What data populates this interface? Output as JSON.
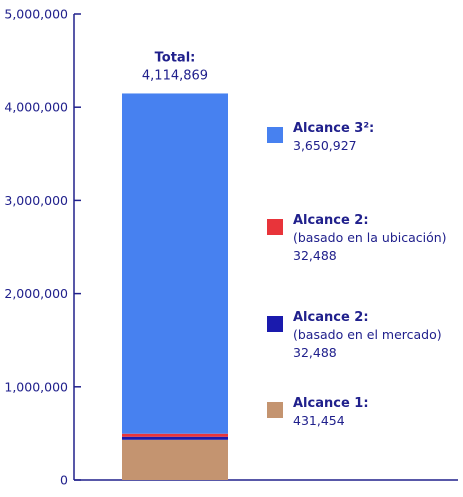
{
  "chart_data": {
    "type": "bar",
    "stacked": true,
    "categories": [
      ""
    ],
    "ylim": [
      0,
      5000000
    ],
    "yticks": [
      0,
      1000000,
      2000000,
      3000000,
      4000000,
      5000000
    ],
    "ytick_labels": [
      "0",
      "1,000,000",
      "2,000,000",
      "3,000,000",
      "4,000,000",
      "5,000,000"
    ],
    "total": {
      "label": "Total:",
      "value_label": "4,114,869",
      "value": 4114869
    },
    "series": [
      {
        "name": "Alcance 1:",
        "subtitle": "",
        "value": 431454,
        "value_label": "431,454",
        "color": "#c49470"
      },
      {
        "name": "Alcance 2:",
        "subtitle": "(basado en el mercado)",
        "value": 32488,
        "value_label": "32,488",
        "color": "#1a1aad"
      },
      {
        "name": "Alcance 2:",
        "subtitle": "(basado en la ubicación)",
        "value": 32488,
        "value_label": "32,488",
        "color": "#e8343a"
      },
      {
        "name": "Alcance 3²:",
        "subtitle": "",
        "value": 3650927,
        "value_label": "3,650,927",
        "color": "#4781f0"
      }
    ],
    "axis_color": "#20208c",
    "text_color": "#20208c",
    "grid": false,
    "legend_position": "right"
  }
}
